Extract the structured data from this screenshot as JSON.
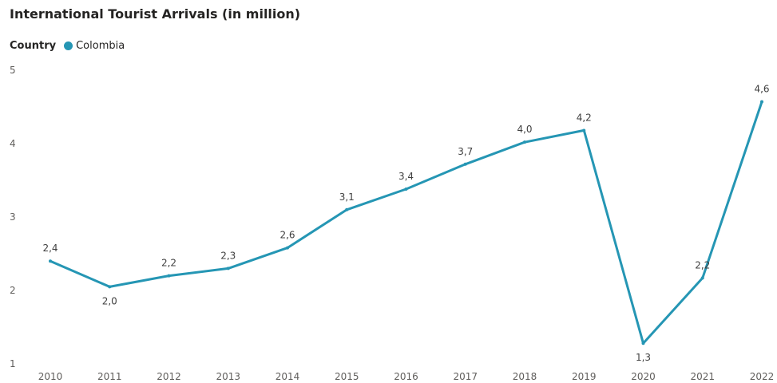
{
  "chart_data": {
    "type": "line",
    "title": "International Tourist Arrivals (in million)",
    "legend_title": "Country",
    "x": [
      "2010",
      "2011",
      "2012",
      "2013",
      "2014",
      "2015",
      "2016",
      "2017",
      "2018",
      "2019",
      "2020",
      "2021",
      "2022"
    ],
    "series": [
      {
        "name": "Colombia",
        "color": "#2596b4",
        "values": [
          2.4,
          2.05,
          2.2,
          2.3,
          2.58,
          3.1,
          3.38,
          3.72,
          4.02,
          4.18,
          1.28,
          2.17,
          4.57
        ],
        "labels": [
          "2,4",
          "2,0",
          "2,2",
          "2,3",
          "2,6",
          "3,1",
          "3,4",
          "3,7",
          "4,0",
          "4,2",
          "1,3",
          "2,2",
          "4,6"
        ]
      }
    ],
    "ylim": [
      1,
      5
    ],
    "yticks": [
      "1",
      "2",
      "3",
      "4",
      "5"
    ],
    "ytick_values": [
      1,
      2,
      3,
      4,
      5
    ],
    "grid": false,
    "legend_position": "top-left"
  }
}
